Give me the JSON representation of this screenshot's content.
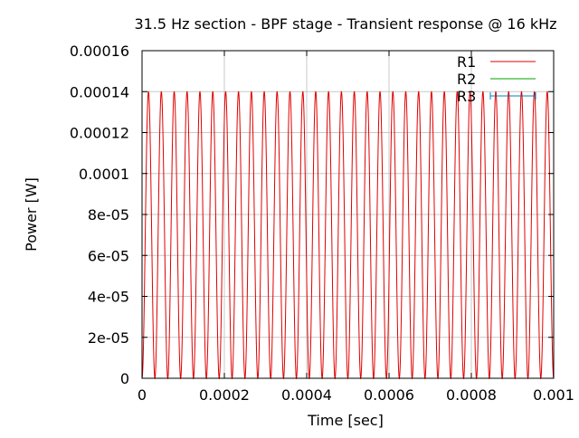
{
  "chart_data": {
    "type": "line",
    "title": "31.5 Hz section - BPF stage - Transient response @ 16 kHz",
    "xlabel": "Time [sec]",
    "ylabel": "Power [W]",
    "xlim": [
      0,
      0.001
    ],
    "ylim": [
      0,
      0.00016
    ],
    "x_ticks": [
      0,
      0.0002,
      0.0004,
      0.0006,
      0.0008,
      0.001
    ],
    "x_tick_labels": [
      "0",
      "0.0002",
      "0.0004",
      "0.0006",
      "0.0008",
      "0.001"
    ],
    "y_ticks": [
      0,
      2e-05,
      4e-05,
      6e-05,
      8e-05,
      0.0001,
      0.00012,
      0.00014,
      0.00016
    ],
    "y_tick_labels": [
      "0",
      "2e-05",
      "4e-05",
      "6e-05",
      "8e-05",
      "0.0001",
      "0.00012",
      "0.00014",
      "0.00016"
    ],
    "grid": true,
    "legend_position": "top-right",
    "series": [
      {
        "name": "R1",
        "color": "#e00000",
        "style": "line",
        "signal": {
          "kind": "sine-squared power oscillation",
          "frequency_hz": 16000,
          "peak": 0.00014,
          "min": 0
        }
      },
      {
        "name": "R2",
        "color": "#00a000",
        "style": "line",
        "visible_in_plot": false
      },
      {
        "name": "R3",
        "color": "#0080c0",
        "style": "line-points",
        "visible_in_plot": false
      }
    ]
  }
}
